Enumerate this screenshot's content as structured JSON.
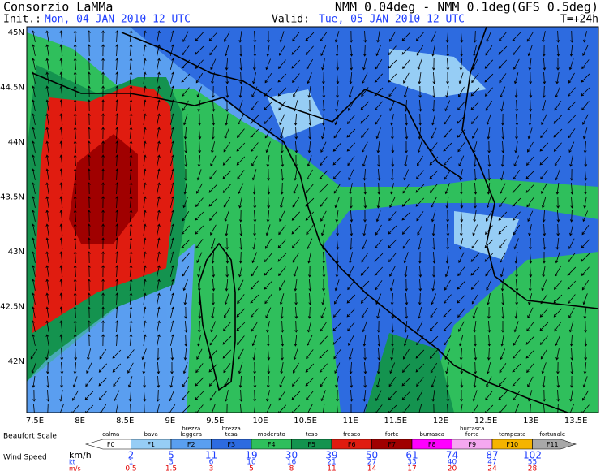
{
  "header": {
    "org": "Consorzio LaMMa",
    "model": "NMM 0.04deg - NMM 0.1deg(GFS 0.5deg)",
    "init_label": "Init.:",
    "init": "Mon, 04 JAN 2010  12 UTC",
    "valid_label": "Valid:",
    "valid": "Tue, 05 JAN 2010  12 UTC",
    "step": "T=+24h"
  },
  "map": {
    "lat_labels": [
      "45N",
      "44.5N",
      "44N",
      "43.5N",
      "43N",
      "42.5N",
      "42N"
    ],
    "lon_labels": [
      "7.5E",
      "8E",
      "8.5E",
      "9E",
      "9.5E",
      "10E",
      "10.5E",
      "11E",
      "11.5E",
      "12E",
      "12.5E",
      "13E",
      "13.5E"
    ]
  },
  "legend": {
    "title": "Beaufort Scale",
    "classes": [
      {
        "name": [
          "calma"
        ],
        "code": "F0",
        "color": "#ffffff"
      },
      {
        "name": [
          "bava"
        ],
        "code": "F1",
        "color": "#96cdf5"
      },
      {
        "name": [
          "brezza",
          "leggera"
        ],
        "code": "F2",
        "color": "#5a9ff0"
      },
      {
        "name": [
          "brezza",
          "tesa"
        ],
        "code": "F3",
        "color": "#2d6be0"
      },
      {
        "name": [
          "moderato"
        ],
        "code": "F4",
        "color": "#2fbf5c"
      },
      {
        "name": [
          "teso"
        ],
        "code": "F5",
        "color": "#14934f"
      },
      {
        "name": [
          "fresco"
        ],
        "code": "F6",
        "color": "#e01c10"
      },
      {
        "name": [
          "forte"
        ],
        "code": "F7",
        "color": "#a00000"
      },
      {
        "name": [
          "burrasca"
        ],
        "code": "F8",
        "color": "#ff00ff"
      },
      {
        "name": [
          "burrasca",
          "forte"
        ],
        "code": "F9",
        "color": "#f5a8f0"
      },
      {
        "name": [
          "tempesta"
        ],
        "code": "F10",
        "color": "#f5b400"
      },
      {
        "name": [
          "fortunale"
        ],
        "code": "F11",
        "color": "#a8a8a8"
      }
    ],
    "speed_title": "Wind Speed",
    "units": [
      {
        "label": "km/h",
        "values": [
          2,
          5,
          11,
          19,
          30,
          39,
          50,
          61,
          74,
          87,
          102
        ]
      },
      {
        "label": "kt",
        "values": [
          1,
          3,
          6,
          10,
          16,
          21,
          27,
          33,
          40,
          47,
          55
        ]
      },
      {
        "label": "m/s",
        "values": [
          0.5,
          1.5,
          3,
          5,
          8,
          11,
          14,
          17,
          20,
          24,
          28
        ]
      }
    ]
  }
}
